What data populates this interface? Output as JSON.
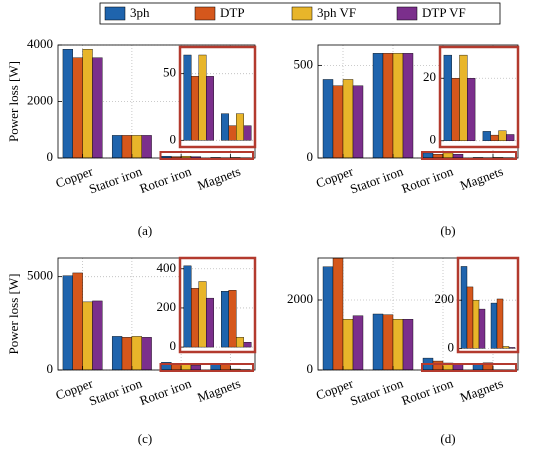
{
  "chart_data": [
    {
      "type": "bar",
      "panel_label": "(a)",
      "ylabel": "Power loss [W]",
      "grid": true,
      "categories": [
        "Copper",
        "Stator iron",
        "Rotor iron",
        "Magnets"
      ],
      "series": [
        {
          "name": "3ph",
          "color": "#1f64ad",
          "values": [
            3850,
            800,
            64,
            20
          ]
        },
        {
          "name": "DTP",
          "color": "#d5571c",
          "values": [
            3550,
            800,
            48,
            11
          ]
        },
        {
          "name": "3ph VF",
          "color": "#e8b52a",
          "values": [
            3850,
            800,
            64,
            20
          ]
        },
        {
          "name": "DTP VF",
          "color": "#7b2f8c",
          "values": [
            3550,
            800,
            48,
            11
          ]
        }
      ],
      "ylim": [
        0,
        4000
      ],
      "yticks": [
        0,
        2000,
        4000
      ],
      "inset": {
        "ylim": [
          -5,
          70
        ],
        "yticks": [
          0,
          50
        ]
      }
    },
    {
      "type": "bar",
      "panel_label": "(b)",
      "grid": true,
      "categories": [
        "Copper",
        "Stator iron",
        "Rotor iron",
        "Magnets"
      ],
      "series": [
        {
          "name": "3ph",
          "color": "#1f64ad",
          "values": [
            424,
            565,
            27.4,
            3
          ]
        },
        {
          "name": "DTP",
          "color": "#d5571c",
          "values": [
            390,
            565,
            20,
            1.8
          ]
        },
        {
          "name": "3ph VF",
          "color": "#e8b52a",
          "values": [
            424,
            565,
            27.4,
            3.2
          ]
        },
        {
          "name": "DTP VF",
          "color": "#7b2f8c",
          "values": [
            390,
            565,
            20,
            2
          ]
        }
      ],
      "ylim": [
        0,
        610
      ],
      "yticks": [
        0,
        500
      ],
      "inset": {
        "ylim": [
          -2,
          30
        ],
        "yticks": [
          0,
          20
        ]
      }
    },
    {
      "type": "bar",
      "panel_label": "(c)",
      "ylabel": "Power loss [W]",
      "grid": true,
      "categories": [
        "Copper",
        "Stator iron",
        "Rotor iron",
        "Magnets"
      ],
      "series": [
        {
          "name": "3ph",
          "color": "#1f64ad",
          "values": [
            5050,
            1800,
            415,
            285
          ]
        },
        {
          "name": "DTP",
          "color": "#d5571c",
          "values": [
            5200,
            1750,
            300,
            290
          ]
        },
        {
          "name": "3ph VF",
          "color": "#e8b52a",
          "values": [
            3650,
            1800,
            335,
            50
          ]
        },
        {
          "name": "DTP VF",
          "color": "#7b2f8c",
          "values": [
            3700,
            1750,
            250,
            25
          ]
        }
      ],
      "ylim": [
        0,
        6000
      ],
      "yticks": [
        0,
        5000
      ],
      "inset": {
        "ylim": [
          -25,
          455
        ],
        "yticks": [
          0,
          200,
          400
        ]
      }
    },
    {
      "type": "bar",
      "panel_label": "(d)",
      "grid": true,
      "categories": [
        "Copper",
        "Stator iron",
        "Rotor iron",
        "Magnets"
      ],
      "series": [
        {
          "name": "3ph",
          "color": "#1f64ad",
          "values": [
            2950,
            1600,
            340,
            188
          ]
        },
        {
          "name": "DTP",
          "color": "#d5571c",
          "values": [
            3200,
            1580,
            255,
            205
          ]
        },
        {
          "name": "3ph VF",
          "color": "#e8b52a",
          "values": [
            1450,
            1450,
            200,
            8
          ]
        },
        {
          "name": "DTP VF",
          "color": "#7b2f8c",
          "values": [
            1550,
            1450,
            163,
            4
          ]
        }
      ],
      "ylim": [
        0,
        3200
      ],
      "yticks": [
        0,
        2000
      ],
      "inset": {
        "ylim": [
          -15,
          375
        ],
        "yticks": [
          0,
          200
        ]
      }
    }
  ]
}
